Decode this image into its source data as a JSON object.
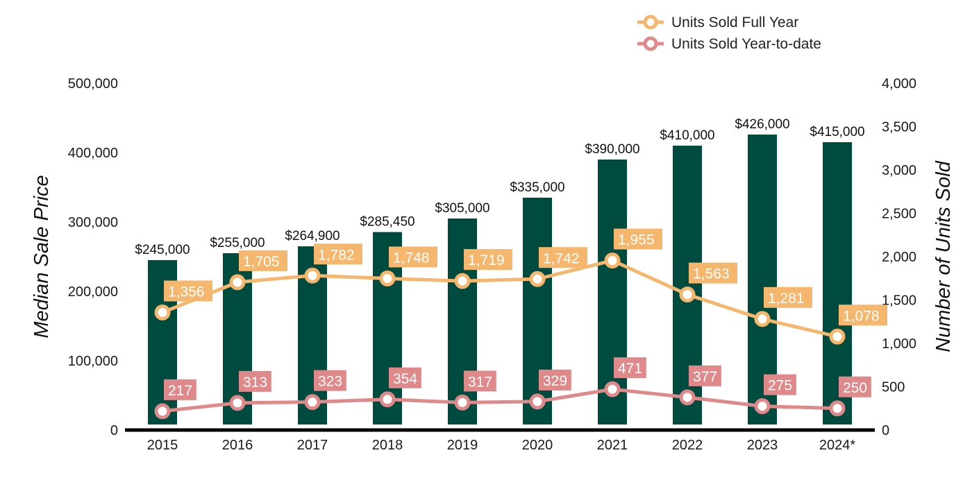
{
  "chart_data": {
    "type": "bar",
    "categories": [
      "2015",
      "2016",
      "2017",
      "2018",
      "2019",
      "2020",
      "2021",
      "2022",
      "2023",
      "2024*"
    ],
    "bars": {
      "values": [
        245000,
        255000,
        264900,
        285450,
        305000,
        335000,
        390000,
        410000,
        426000,
        415000
      ],
      "labels": [
        "$245,000",
        "$255,000",
        "$264,900",
        "$285,450",
        "$305,000",
        "$335,000",
        "$390,000",
        "$410,000",
        "$426,000",
        "$415,000"
      ],
      "color": "#004B40"
    },
    "series": [
      {
        "name": "Units Sold Full Year",
        "type": "line",
        "axis": "right",
        "values": [
          1356,
          1705,
          1782,
          1748,
          1719,
          1742,
          1955,
          1563,
          1281,
          1078
        ],
        "labels": [
          "1,356",
          "1,705",
          "1,782",
          "1,748",
          "1,719",
          "1,742",
          "1,955",
          "1,563",
          "1,281",
          "1,078"
        ],
        "color": "#F5B66E"
      },
      {
        "name": "Units Sold Year-to-date",
        "type": "line",
        "axis": "right",
        "values": [
          217,
          313,
          323,
          354,
          317,
          329,
          471,
          377,
          275,
          250
        ],
        "labels": [
          "217",
          "313",
          "323",
          "354",
          "317",
          "329",
          "471",
          "377",
          "275",
          "250"
        ],
        "color": "#E0898A"
      }
    ],
    "ylabel": "Median Sale Price",
    "y2label": "Number of Units Sold",
    "ylim": [
      0,
      500000
    ],
    "y2lim": [
      0,
      4000
    ],
    "yticks": [
      "0",
      "100,000",
      "200,000",
      "300,000",
      "400,000",
      "500,000"
    ],
    "y2ticks": [
      "0",
      "500",
      "1,000",
      "1,500",
      "2,000",
      "2,500",
      "3,000",
      "3,500",
      "4,000"
    ],
    "legend_position": "top-right",
    "grid": false
  }
}
